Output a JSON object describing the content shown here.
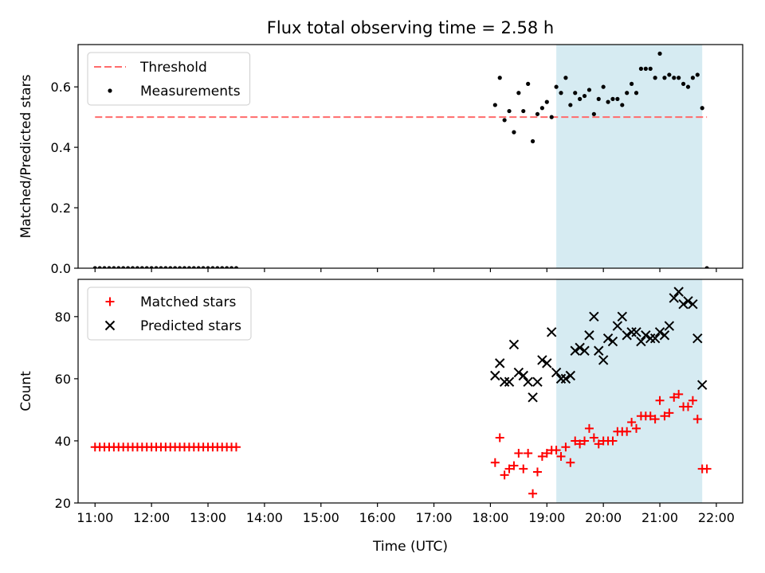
{
  "figure": {
    "title": "Flux total observing time = 2.58 h",
    "xlabel": "Time (UTC)"
  },
  "chart_data": [
    {
      "type": "scatter",
      "ylabel": "Matched/Predicted stars",
      "xlim": [
        "10:42",
        "22:28"
      ],
      "ylim": [
        0,
        0.74
      ],
      "yticks": [
        0.0,
        0.2,
        0.4,
        0.6
      ],
      "ytick_labels": [
        "0.0",
        "0.2",
        "0.4",
        "0.6"
      ],
      "grid": false,
      "legend_position": "upper-left",
      "shaded_region": {
        "x": [
          "19:10",
          "21:45"
        ],
        "color": "#add8e6"
      },
      "threshold": {
        "name": "Threshold",
        "y": 0.5,
        "x": [
          "11:00",
          "21:50"
        ],
        "color": "#ff6b6b",
        "style": "dashed"
      },
      "series": [
        {
          "name": "Measurements",
          "marker": "dot",
          "color": "#000000",
          "x": [
            "11:00",
            "11:05",
            "11:10",
            "11:15",
            "11:20",
            "11:25",
            "11:30",
            "11:35",
            "11:40",
            "11:45",
            "11:50",
            "11:55",
            "12:00",
            "12:05",
            "12:10",
            "12:15",
            "12:20",
            "12:25",
            "12:30",
            "12:35",
            "12:40",
            "12:45",
            "12:50",
            "12:55",
            "13:00",
            "13:05",
            "13:10",
            "13:15",
            "13:20",
            "13:25",
            "13:30",
            "18:05",
            "18:10",
            "18:15",
            "18:20",
            "18:25",
            "18:30",
            "18:35",
            "18:40",
            "18:45",
            "18:50",
            "18:55",
            "19:00",
            "19:05",
            "19:10",
            "19:15",
            "19:20",
            "19:25",
            "19:30",
            "19:35",
            "19:40",
            "19:45",
            "19:50",
            "19:55",
            "20:00",
            "20:05",
            "20:10",
            "20:15",
            "20:20",
            "20:25",
            "20:30",
            "20:35",
            "20:40",
            "20:45",
            "20:50",
            "20:55",
            "21:00",
            "21:05",
            "21:10",
            "21:15",
            "21:20",
            "21:25",
            "21:30",
            "21:35",
            "21:40",
            "21:45",
            "21:50"
          ],
          "y": [
            0,
            0,
            0,
            0,
            0,
            0,
            0,
            0,
            0,
            0,
            0,
            0,
            0,
            0,
            0,
            0,
            0,
            0,
            0,
            0,
            0,
            0,
            0,
            0,
            0,
            0,
            0,
            0,
            0,
            0,
            0,
            0.54,
            0.63,
            0.49,
            0.52,
            0.45,
            0.58,
            0.52,
            0.61,
            0.42,
            0.51,
            0.53,
            0.55,
            0.5,
            0.6,
            0.58,
            0.63,
            0.54,
            0.58,
            0.56,
            0.57,
            0.59,
            0.51,
            0.56,
            0.6,
            0.55,
            0.56,
            0.56,
            0.54,
            0.58,
            0.61,
            0.58,
            0.66,
            0.66,
            0.66,
            0.63,
            0.71,
            0.63,
            0.64,
            0.63,
            0.63,
            0.61,
            0.6,
            0.63,
            0.64,
            0.53,
            0.0
          ]
        }
      ]
    },
    {
      "type": "scatter",
      "ylabel": "Count",
      "xlim": [
        "10:42",
        "22:28"
      ],
      "ylim": [
        20,
        92
      ],
      "yticks": [
        20,
        40,
        60,
        80
      ],
      "ytick_labels": [
        "20",
        "40",
        "60",
        "80"
      ],
      "xticks": [
        "11:00",
        "12:00",
        "13:00",
        "14:00",
        "15:00",
        "16:00",
        "17:00",
        "18:00",
        "19:00",
        "20:00",
        "21:00",
        "22:00"
      ],
      "grid": false,
      "legend_position": "upper-left",
      "shaded_region": {
        "x": [
          "19:10",
          "21:45"
        ],
        "color": "#add8e6"
      },
      "series": [
        {
          "name": "Matched stars",
          "marker": "plus",
          "color": "#ff0000",
          "x": [
            "11:00",
            "11:05",
            "11:10",
            "11:15",
            "11:20",
            "11:25",
            "11:30",
            "11:35",
            "11:40",
            "11:45",
            "11:50",
            "11:55",
            "12:00",
            "12:05",
            "12:10",
            "12:15",
            "12:20",
            "12:25",
            "12:30",
            "12:35",
            "12:40",
            "12:45",
            "12:50",
            "12:55",
            "13:00",
            "13:05",
            "13:10",
            "13:15",
            "13:20",
            "13:25",
            "13:30",
            "18:05",
            "18:10",
            "18:15",
            "18:20",
            "18:25",
            "18:30",
            "18:35",
            "18:40",
            "18:45",
            "18:50",
            "18:55",
            "19:00",
            "19:05",
            "19:10",
            "19:15",
            "19:20",
            "19:25",
            "19:30",
            "19:35",
            "19:40",
            "19:45",
            "19:50",
            "19:55",
            "20:00",
            "20:05",
            "20:10",
            "20:15",
            "20:20",
            "20:25",
            "20:30",
            "20:35",
            "20:40",
            "20:45",
            "20:50",
            "20:55",
            "21:00",
            "21:05",
            "21:10",
            "21:15",
            "21:20",
            "21:25",
            "21:30",
            "21:35",
            "21:40",
            "21:45",
            "21:50"
          ],
          "y": [
            38,
            38,
            38,
            38,
            38,
            38,
            38,
            38,
            38,
            38,
            38,
            38,
            38,
            38,
            38,
            38,
            38,
            38,
            38,
            38,
            38,
            38,
            38,
            38,
            38,
            38,
            38,
            38,
            38,
            38,
            38,
            33,
            41,
            29,
            31,
            32,
            36,
            31,
            36,
            23,
            30,
            35,
            36,
            37,
            37,
            35,
            38,
            33,
            40,
            39,
            40,
            44,
            41,
            39,
            40,
            40,
            40,
            43,
            43,
            43,
            46,
            44,
            48,
            48,
            48,
            47,
            53,
            48,
            49,
            54,
            55,
            51,
            51,
            53,
            47,
            31,
            31
          ]
        },
        {
          "name": "Predicted stars",
          "marker": "x",
          "color": "#000000",
          "x": [
            "18:05",
            "18:10",
            "18:15",
            "18:20",
            "18:25",
            "18:30",
            "18:35",
            "18:40",
            "18:45",
            "18:50",
            "18:55",
            "19:00",
            "19:05",
            "19:10",
            "19:15",
            "19:20",
            "19:25",
            "19:30",
            "19:35",
            "19:40",
            "19:45",
            "19:50",
            "19:55",
            "20:00",
            "20:05",
            "20:10",
            "20:15",
            "20:20",
            "20:25",
            "20:30",
            "20:35",
            "20:40",
            "20:45",
            "20:50",
            "20:55",
            "21:00",
            "21:05",
            "21:10",
            "21:15",
            "21:20",
            "21:25",
            "21:30",
            "21:35",
            "21:40",
            "21:45"
          ],
          "y": [
            61,
            65,
            59,
            59,
            71,
            62,
            61,
            59,
            54,
            59,
            66,
            65,
            75,
            62,
            60,
            60,
            61,
            69,
            70,
            69,
            74,
            80,
            69,
            66,
            73,
            72,
            77,
            80,
            74,
            75,
            75,
            72,
            74,
            73,
            73,
            75,
            74,
            77,
            86,
            88,
            84,
            85,
            84,
            73,
            58
          ]
        }
      ]
    }
  ]
}
